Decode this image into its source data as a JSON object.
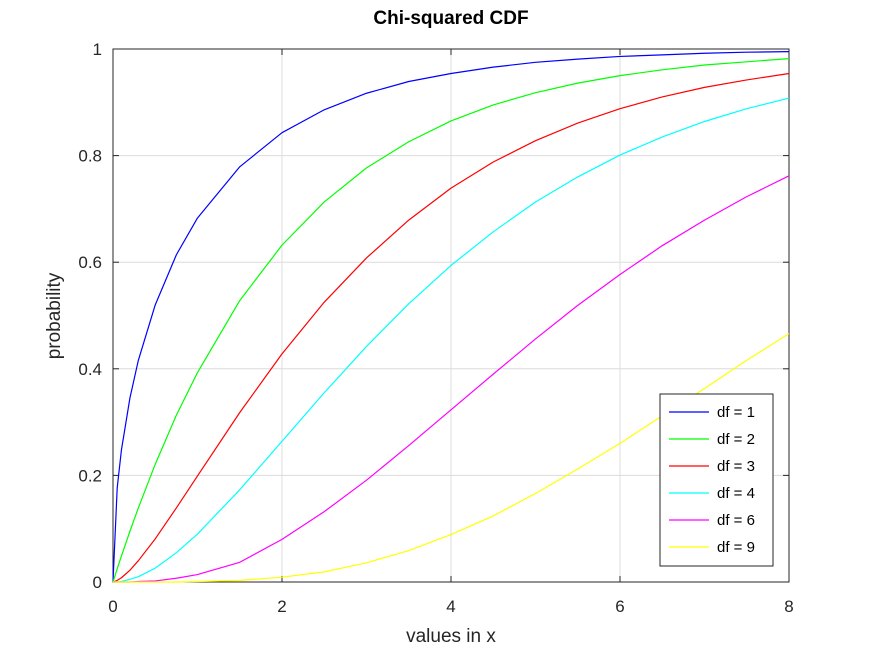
{
  "chart_data": {
    "type": "line",
    "title": "Chi-squared CDF",
    "xlabel": "values in x",
    "ylabel": "probability",
    "xlim": [
      0,
      8
    ],
    "ylim": [
      0,
      1
    ],
    "xticks": [
      0,
      2,
      4,
      6,
      8
    ],
    "xtick_labels": [
      "0",
      "2",
      "4",
      "6",
      "8"
    ],
    "yticks": [
      0,
      0.2,
      0.4,
      0.6,
      0.8,
      1
    ],
    "ytick_labels": [
      "0",
      "0.2",
      "0.4",
      "0.6",
      "0.8",
      "1"
    ],
    "grid": true,
    "legend_position": "bottom-right",
    "x": [
      0,
      0.05,
      0.1,
      0.2,
      0.3,
      0.5,
      0.75,
      1,
      1.5,
      2,
      2.5,
      3,
      3.5,
      4,
      4.5,
      5,
      5.5,
      6,
      6.5,
      7,
      7.5,
      8
    ],
    "series": [
      {
        "name": "df = 1",
        "color": "#0000ff",
        "values": [
          0,
          0.177,
          0.248,
          0.345,
          0.416,
          0.52,
          0.614,
          0.683,
          0.779,
          0.843,
          0.886,
          0.917,
          0.939,
          0.954,
          0.966,
          0.975,
          0.981,
          0.986,
          0.989,
          0.992,
          0.994,
          0.995
        ]
      },
      {
        "name": "df = 2",
        "color": "#00ff00",
        "values": [
          0,
          0.025,
          0.049,
          0.095,
          0.139,
          0.221,
          0.313,
          0.393,
          0.528,
          0.632,
          0.713,
          0.777,
          0.826,
          0.865,
          0.895,
          0.918,
          0.936,
          0.95,
          0.961,
          0.97,
          0.976,
          0.982
        ]
      },
      {
        "name": "df = 3",
        "color": "#ff0000",
        "values": [
          0,
          0.003,
          0.008,
          0.022,
          0.04,
          0.081,
          0.139,
          0.199,
          0.318,
          0.428,
          0.525,
          0.608,
          0.679,
          0.739,
          0.788,
          0.828,
          0.861,
          0.888,
          0.91,
          0.928,
          0.942,
          0.954
        ]
      },
      {
        "name": "df = 4",
        "color": "#00ffff",
        "values": [
          0,
          0.0,
          0.001,
          0.005,
          0.01,
          0.026,
          0.055,
          0.09,
          0.173,
          0.264,
          0.355,
          0.442,
          0.522,
          0.594,
          0.657,
          0.713,
          0.76,
          0.801,
          0.835,
          0.864,
          0.888,
          0.908
        ]
      },
      {
        "name": "df = 6",
        "color": "#ff00ff",
        "values": [
          0,
          0,
          0,
          0.0,
          0.001,
          0.002,
          0.007,
          0.014,
          0.037,
          0.08,
          0.132,
          0.191,
          0.256,
          0.323,
          0.39,
          0.456,
          0.519,
          0.577,
          0.631,
          0.679,
          0.723,
          0.762
        ]
      },
      {
        "name": "df = 9",
        "color": "#ffff00",
        "values": [
          0,
          0,
          0,
          0,
          0,
          0,
          0.0,
          0.001,
          0.003,
          0.009,
          0.019,
          0.036,
          0.059,
          0.089,
          0.124,
          0.166,
          0.212,
          0.26,
          0.312,
          0.363,
          0.416,
          0.466
        ]
      }
    ]
  }
}
